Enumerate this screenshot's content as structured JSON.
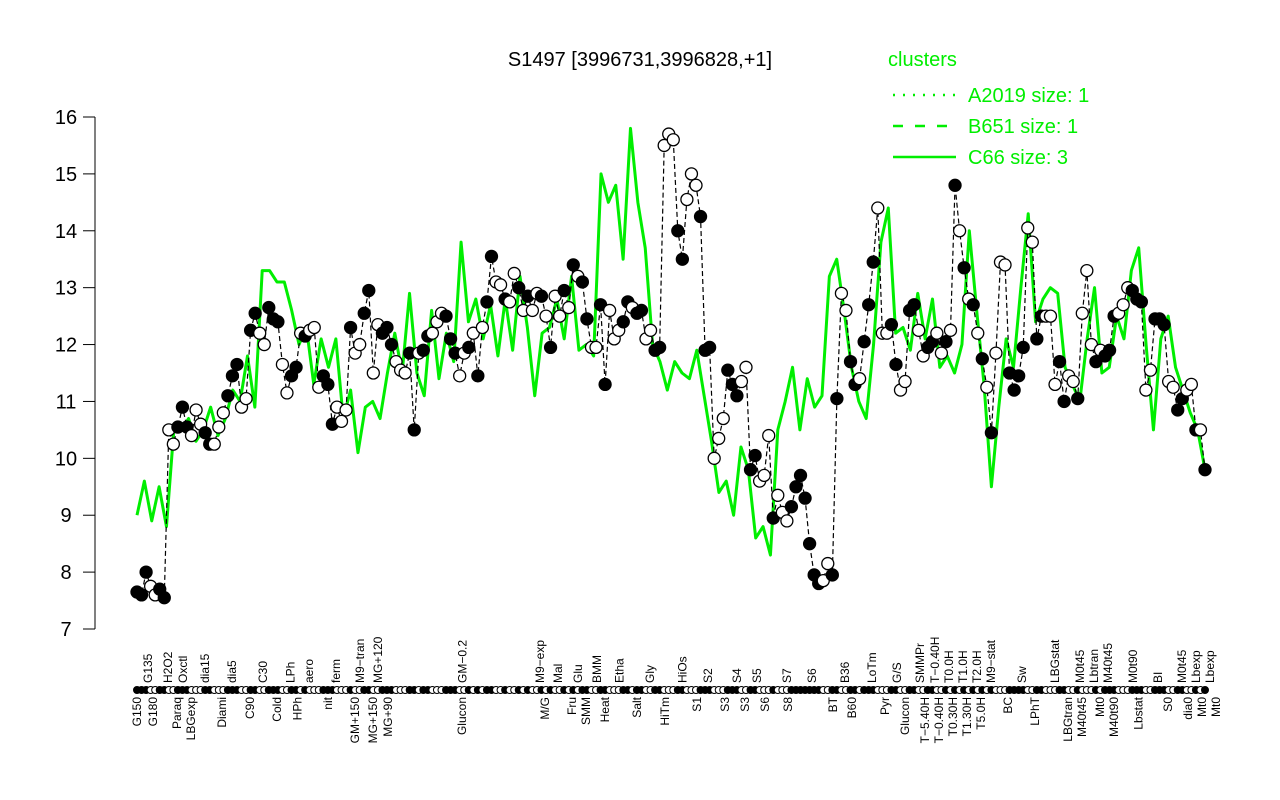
{
  "chart_data": {
    "type": "line",
    "title": "S1497 [3996731,3996828,+1]",
    "xlabel": "",
    "ylabel": "",
    "ylim": [
      7,
      16
    ],
    "yticks": [
      7,
      8,
      9,
      10,
      11,
      12,
      13,
      14,
      15,
      16
    ],
    "xlim": [
      0,
      200
    ],
    "grid": false,
    "legend": {
      "title": "clusters",
      "placement": "top-right",
      "entries": [
        {
          "label": "A2019 size: 1",
          "style": "dotted"
        },
        {
          "label": "B651 size: 1",
          "style": "dashed"
        },
        {
          "label": "C66 size: 3",
          "style": "solid"
        }
      ]
    },
    "colors": {
      "cluster": "#00ee00",
      "points": "#000000"
    },
    "points_note": "ordered [expression, filled(1)/open(0)]",
    "points": [
      [
        7.65,
        1
      ],
      [
        7.6,
        1
      ],
      [
        8.0,
        1
      ],
      [
        7.75,
        0
      ],
      [
        7.6,
        0
      ],
      [
        7.7,
        1
      ],
      [
        7.55,
        1
      ],
      [
        10.5,
        0
      ],
      [
        10.25,
        0
      ],
      [
        10.55,
        1
      ],
      [
        10.9,
        1
      ],
      [
        10.55,
        1
      ],
      [
        10.4,
        0
      ],
      [
        10.85,
        0
      ],
      [
        10.6,
        0
      ],
      [
        10.45,
        1
      ],
      [
        10.25,
        1
      ],
      [
        10.25,
        0
      ],
      [
        10.55,
        0
      ],
      [
        10.8,
        0
      ],
      [
        11.1,
        1
      ],
      [
        11.45,
        1
      ],
      [
        11.65,
        1
      ],
      [
        10.9,
        0
      ],
      [
        11.05,
        0
      ],
      [
        12.25,
        1
      ],
      [
        12.55,
        1
      ],
      [
        12.2,
        0
      ],
      [
        12.0,
        0
      ],
      [
        12.65,
        1
      ],
      [
        12.45,
        1
      ],
      [
        12.4,
        1
      ],
      [
        11.65,
        0
      ],
      [
        11.15,
        0
      ],
      [
        11.45,
        1
      ],
      [
        11.6,
        1
      ],
      [
        12.2,
        0
      ],
      [
        12.15,
        1
      ],
      [
        12.25,
        0
      ],
      [
        12.3,
        0
      ],
      [
        11.25,
        0
      ],
      [
        11.45,
        1
      ],
      [
        11.3,
        1
      ],
      [
        10.6,
        1
      ],
      [
        10.9,
        0
      ],
      [
        10.65,
        0
      ],
      [
        10.85,
        0
      ],
      [
        12.3,
        1
      ],
      [
        11.85,
        0
      ],
      [
        12.0,
        0
      ],
      [
        12.55,
        1
      ],
      [
        12.95,
        1
      ],
      [
        11.5,
        0
      ],
      [
        12.35,
        0
      ],
      [
        12.2,
        1
      ],
      [
        12.3,
        1
      ],
      [
        12.0,
        1
      ],
      [
        11.7,
        0
      ],
      [
        11.55,
        0
      ],
      [
        11.5,
        0
      ],
      [
        11.85,
        1
      ],
      [
        10.5,
        1
      ],
      [
        11.85,
        0
      ],
      [
        11.9,
        1
      ],
      [
        12.15,
        1
      ],
      [
        12.2,
        0
      ],
      [
        12.4,
        0
      ],
      [
        12.55,
        0
      ],
      [
        12.5,
        1
      ],
      [
        12.1,
        1
      ],
      [
        11.85,
        1
      ],
      [
        11.45,
        0
      ],
      [
        11.85,
        0
      ],
      [
        11.95,
        1
      ],
      [
        12.2,
        0
      ],
      [
        11.45,
        1
      ],
      [
        12.3,
        0
      ],
      [
        12.75,
        1
      ],
      [
        13.55,
        1
      ],
      [
        13.1,
        0
      ],
      [
        13.05,
        0
      ],
      [
        12.8,
        1
      ],
      [
        12.75,
        0
      ],
      [
        13.25,
        0
      ],
      [
        13.0,
        1
      ],
      [
        12.6,
        0
      ],
      [
        12.85,
        1
      ],
      [
        12.6,
        0
      ],
      [
        12.9,
        0
      ],
      [
        12.85,
        1
      ],
      [
        12.5,
        0
      ],
      [
        11.95,
        1
      ],
      [
        12.85,
        0
      ],
      [
        12.5,
        0
      ],
      [
        12.95,
        1
      ],
      [
        12.65,
        0
      ],
      [
        13.4,
        1
      ],
      [
        13.2,
        0
      ],
      [
        13.1,
        1
      ],
      [
        12.45,
        1
      ],
      [
        11.95,
        0
      ],
      [
        11.95,
        0
      ],
      [
        12.7,
        1
      ],
      [
        11.3,
        1
      ],
      [
        12.6,
        0
      ],
      [
        12.1,
        0
      ],
      [
        12.25,
        0
      ],
      [
        12.4,
        1
      ],
      [
        12.75,
        1
      ],
      [
        12.65,
        0
      ],
      [
        12.55,
        1
      ],
      [
        12.6,
        1
      ],
      [
        12.1,
        0
      ],
      [
        12.25,
        0
      ],
      [
        11.9,
        1
      ],
      [
        11.95,
        1
      ],
      [
        15.5,
        0
      ],
      [
        15.7,
        0
      ],
      [
        15.6,
        0
      ],
      [
        14.0,
        1
      ],
      [
        13.5,
        1
      ],
      [
        14.55,
        0
      ],
      [
        15.0,
        0
      ],
      [
        14.8,
        0
      ],
      [
        14.25,
        1
      ],
      [
        11.9,
        1
      ],
      [
        11.95,
        1
      ],
      [
        10.0,
        0
      ],
      [
        10.35,
        0
      ],
      [
        10.7,
        0
      ],
      [
        11.55,
        1
      ],
      [
        11.3,
        1
      ],
      [
        11.1,
        1
      ],
      [
        11.35,
        0
      ],
      [
        11.6,
        0
      ],
      [
        9.8,
        1
      ],
      [
        10.05,
        1
      ],
      [
        9.6,
        0
      ],
      [
        9.7,
        0
      ],
      [
        10.4,
        0
      ],
      [
        8.95,
        1
      ],
      [
        9.35,
        0
      ],
      [
        9.05,
        0
      ],
      [
        8.9,
        0
      ],
      [
        9.15,
        1
      ],
      [
        9.5,
        1
      ],
      [
        9.7,
        1
      ],
      [
        9.3,
        1
      ],
      [
        8.5,
        1
      ],
      [
        7.95,
        1
      ],
      [
        7.8,
        1
      ],
      [
        7.85,
        0
      ],
      [
        8.15,
        0
      ],
      [
        7.95,
        1
      ],
      [
        11.05,
        1
      ],
      [
        12.9,
        0
      ],
      [
        12.6,
        0
      ],
      [
        11.7,
        1
      ],
      [
        11.3,
        1
      ],
      [
        11.4,
        0
      ],
      [
        12.05,
        1
      ],
      [
        12.7,
        1
      ],
      [
        13.45,
        1
      ],
      [
        14.4,
        0
      ],
      [
        12.2,
        0
      ],
      [
        12.2,
        0
      ],
      [
        12.35,
        1
      ],
      [
        11.65,
        1
      ],
      [
        11.2,
        0
      ],
      [
        11.35,
        0
      ],
      [
        12.6,
        1
      ],
      [
        12.7,
        1
      ],
      [
        12.25,
        0
      ],
      [
        11.8,
        0
      ],
      [
        11.95,
        1
      ],
      [
        12.05,
        1
      ],
      [
        12.2,
        0
      ],
      [
        11.85,
        0
      ],
      [
        12.05,
        1
      ],
      [
        12.25,
        0
      ],
      [
        14.8,
        1
      ],
      [
        14.0,
        0
      ],
      [
        13.35,
        1
      ],
      [
        12.8,
        0
      ],
      [
        12.7,
        1
      ],
      [
        12.2,
        0
      ],
      [
        11.75,
        1
      ],
      [
        11.25,
        0
      ],
      [
        10.45,
        1
      ],
      [
        11.85,
        0
      ],
      [
        13.45,
        0
      ],
      [
        13.4,
        0
      ],
      [
        11.5,
        1
      ],
      [
        11.2,
        1
      ],
      [
        11.45,
        1
      ],
      [
        11.95,
        1
      ],
      [
        14.05,
        0
      ],
      [
        13.8,
        0
      ],
      [
        12.1,
        1
      ],
      [
        12.5,
        1
      ],
      [
        12.5,
        0
      ],
      [
        12.5,
        0
      ],
      [
        11.3,
        0
      ],
      [
        11.7,
        1
      ],
      [
        11.0,
        1
      ],
      [
        11.45,
        0
      ],
      [
        11.35,
        0
      ],
      [
        11.05,
        1
      ],
      [
        12.55,
        0
      ],
      [
        13.3,
        0
      ],
      [
        12.0,
        0
      ],
      [
        11.7,
        1
      ],
      [
        11.9,
        0
      ],
      [
        11.8,
        1
      ],
      [
        11.9,
        1
      ],
      [
        12.5,
        1
      ],
      [
        12.55,
        0
      ],
      [
        12.7,
        0
      ],
      [
        13.0,
        0
      ],
      [
        12.95,
        1
      ],
      [
        12.8,
        1
      ],
      [
        12.75,
        1
      ],
      [
        11.2,
        0
      ],
      [
        11.55,
        0
      ],
      [
        12.45,
        1
      ],
      [
        12.45,
        1
      ],
      [
        12.35,
        1
      ],
      [
        11.35,
        0
      ],
      [
        11.25,
        0
      ],
      [
        10.85,
        1
      ],
      [
        11.05,
        1
      ],
      [
        11.2,
        0
      ],
      [
        11.3,
        0
      ],
      [
        10.5,
        1
      ],
      [
        10.5,
        0
      ],
      [
        9.8,
        1
      ]
    ],
    "series": [
      {
        "name": "C66 size: 3",
        "values": [
          9.0,
          9.6,
          8.9,
          9.5,
          8.8,
          10.5,
          10.5,
          10.7,
          10.3,
          10.5,
          10.9,
          10.4,
          10.7,
          11.2,
          11.0,
          11.8,
          10.9,
          13.3,
          13.3,
          13.1,
          13.1,
          12.6,
          12.0,
          12.3,
          11.3,
          12.1,
          11.6,
          12.1,
          10.7,
          11.2,
          10.1,
          10.9,
          11.0,
          10.7,
          11.5,
          12.2,
          11.5,
          12.9,
          11.5,
          11.1,
          12.6,
          11.4,
          12.2,
          11.7,
          13.8,
          12.4,
          12.8,
          12.1,
          12.7,
          11.8,
          12.8,
          11.9,
          13.2,
          12.3,
          11.1,
          12.2,
          12.3,
          12.8,
          12.1,
          13.2,
          11.9,
          12.0,
          11.8,
          15.0,
          14.5,
          14.8,
          13.5,
          15.8,
          14.5,
          13.7,
          12.0,
          11.7,
          11.2,
          11.7,
          11.5,
          11.4,
          11.9,
          11.1,
          10.3,
          9.4,
          9.6,
          9.0,
          10.2,
          9.8,
          8.6,
          8.8,
          8.3,
          10.5,
          11.0,
          11.6,
          10.5,
          11.4,
          10.9,
          11.1,
          13.2,
          13.5,
          12.6,
          11.6,
          11.0,
          10.7,
          12.0,
          13.8,
          14.4,
          12.2,
          12.3,
          11.9,
          12.9,
          12.1,
          12.8,
          11.6,
          11.8,
          11.5,
          12.0,
          14.0,
          12.6,
          11.3,
          9.5,
          10.9,
          12.1,
          11.6,
          13.0,
          14.3,
          12.4,
          12.8,
          13.0,
          12.9,
          11.6,
          11.3,
          11.0,
          12.1,
          13.0,
          11.5,
          11.6,
          12.5,
          12.1,
          13.3,
          13.7,
          12.0,
          10.5,
          12.1,
          12.5,
          11.6,
          11.2,
          10.8,
          10.5,
          9.8
        ]
      }
    ],
    "tick_labels_top": [
      [
        "G135",
        2.1
      ],
      [
        "H2O2",
        5.8
      ],
      [
        "Oxctl",
        8.6
      ],
      [
        "dia15",
        12.7
      ],
      [
        "dia5",
        17.8
      ],
      [
        "C30",
        23.6
      ],
      [
        "LPh",
        28.7
      ],
      [
        "aero",
        32.2
      ],
      [
        "ferm",
        37.3
      ],
      [
        "M9−tran",
        41.8
      ],
      [
        "MG+120",
        45.1
      ],
      [
        "GM−0.2",
        61.0
      ],
      [
        "M9−exp",
        75.5
      ],
      [
        "Mal",
        78.8
      ],
      [
        "Glu",
        82.6
      ],
      [
        "BMM",
        86.1
      ],
      [
        "Etha",
        90.4
      ],
      [
        "Gly",
        96.1
      ],
      [
        "HiOs",
        102.2
      ],
      [
        "S2",
        106.9
      ],
      [
        "S4",
        112.4
      ],
      [
        "S5",
        116.1
      ],
      [
        "S7",
        121.7
      ],
      [
        "S6",
        126.4
      ],
      [
        "B36",
        132.6
      ],
      [
        "LoTm",
        137.6
      ],
      [
        "G/S",
        142.3
      ],
      [
        "SMMPr",
        146.6
      ],
      [
        "T−0.40H",
        149.4
      ],
      [
        "T0.0H",
        151.3
      ],
      [
        "T1.0H",
        153.6
      ],
      [
        "T2.0H",
        155.1
      ],
      [
        "M9−stat",
        159.7
      ],
      [
        "Sw",
        165.7
      ],
      [
        "LBGstat",
        171.9
      ],
      [
        "M0t45",
        176.6
      ],
      [
        "Lbtran",
        178.5
      ],
      [
        "M40t45",
        180.7
      ],
      [
        "M0t90",
        186.5
      ],
      [
        "BI",
        191.2
      ],
      [
        "M0t45",
        195.7
      ],
      [
        "Lbexp",
        197.8
      ],
      [
        "Lbexp",
        199.1
      ]
    ],
    "tick_labels_bottom": [
      [
        "G150",
        0
      ],
      [
        "G180",
        3.0
      ],
      [
        "Paraq",
        7.5
      ],
      [
        "LBGexp",
        9.9
      ],
      [
        "Diami",
        15.9
      ],
      [
        "C90",
        21.2
      ],
      [
        "Cold",
        26.2
      ],
      [
        "HPh",
        30.1
      ],
      [
        "nit",
        35.8
      ],
      [
        "GM+150",
        40.8
      ],
      [
        "MG+150",
        44.2
      ],
      [
        "MG+90",
        47.0
      ],
      [
        "Glucon",
        60.9
      ],
      [
        "M/G",
        76.4
      ],
      [
        "Fru",
        81.5
      ],
      [
        "SMM",
        83.9
      ],
      [
        "Heat",
        87.6
      ],
      [
        "Salt",
        93.6
      ],
      [
        "HiTm",
        98.9
      ],
      [
        "S1",
        104.9
      ],
      [
        "S3",
        110.1
      ],
      [
        "S3",
        113.9
      ],
      [
        "S6",
        117.6
      ],
      [
        "S8",
        121.9
      ],
      [
        "BT",
        130.3
      ],
      [
        "B60",
        133.9
      ],
      [
        "Pyr",
        140.1
      ],
      [
        "Glucon",
        143.8
      ],
      [
        "T−5.40H",
        147.6
      ],
      [
        "T−0.40H",
        149.1
      ],
      [
        "T0.30H",
        152.8
      ],
      [
        "T1.30H",
        154.1
      ],
      [
        "T5.0H",
        155.6
      ],
      [
        "BC",
        163.1
      ],
      [
        "LPhT",
        168.2
      ],
      [
        "LBGtran",
        174.3
      ],
      [
        "M40t45",
        176.2
      ],
      [
        "Mt0",
        180.3
      ],
      [
        "M40t90",
        182.2
      ],
      [
        "Lbstat",
        187.5
      ],
      [
        "S0",
        193.1
      ],
      [
        "dia0",
        196.8
      ],
      [
        "Mt0",
        198.1
      ],
      [
        "Mt0",
        199.1
      ]
    ]
  }
}
